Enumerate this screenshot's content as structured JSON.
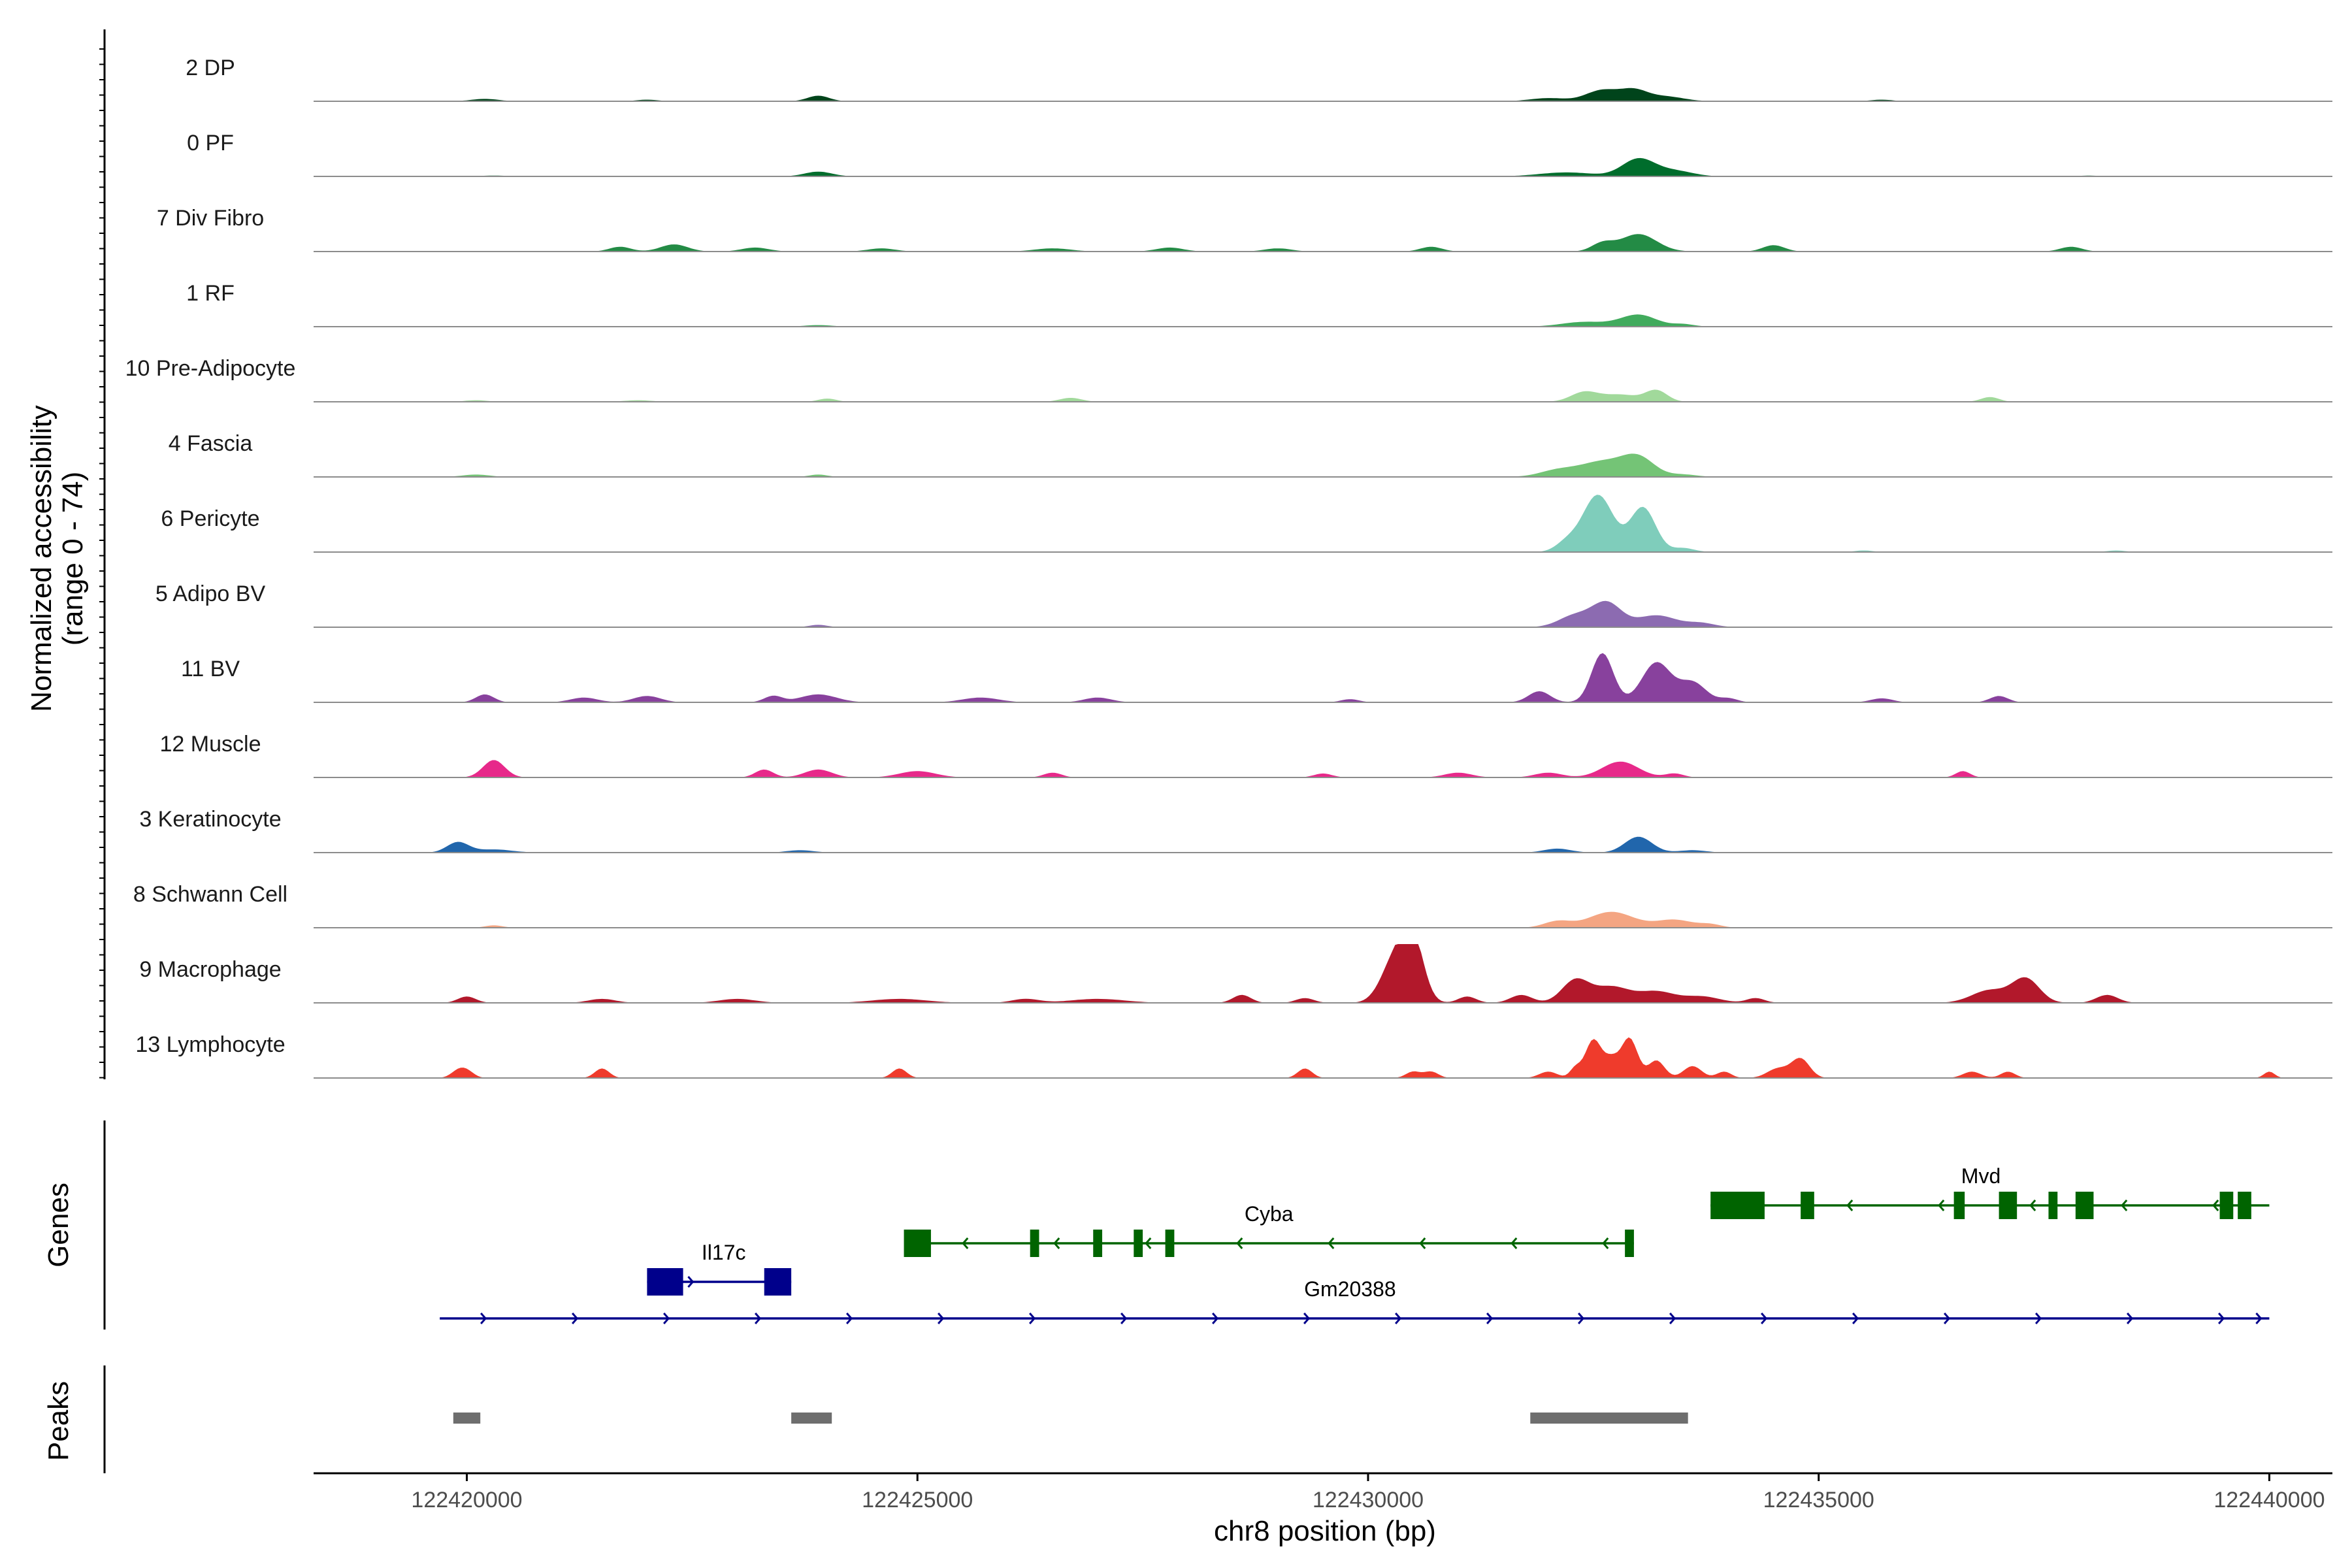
{
  "chart_data": {
    "type": "area",
    "title": "",
    "ylabel_line1": "Normalized accessibility",
    "ylabel_line2": "(range 0 - 74)",
    "y_range": [
      0,
      74
    ],
    "xlabel": "chr8 position (bp)",
    "x_range": [
      122418300,
      122440700
    ],
    "x_ticks": [
      122420000,
      122425000,
      122430000,
      122435000,
      122440000
    ],
    "x_tick_labels": [
      "122420000",
      "122425000",
      "122430000",
      "122435000",
      "122440000"
    ],
    "panel_genes_label": "Genes",
    "panel_peaks_label": "Peaks",
    "baseline_color": "#8c8c8c",
    "tracks": [
      {
        "name": "2 DP",
        "color": "#00441b",
        "peaks": [
          [
            122420200,
            150,
            3
          ],
          [
            122422000,
            120,
            2
          ],
          [
            122423900,
            120,
            7
          ],
          [
            122432000,
            200,
            4
          ],
          [
            122432600,
            180,
            14
          ],
          [
            122432950,
            150,
            13
          ],
          [
            122433300,
            200,
            6
          ],
          [
            122435700,
            120,
            2
          ]
        ]
      },
      {
        "name": "0 PF",
        "color": "#006d2c",
        "peaks": [
          [
            122420300,
            200,
            1
          ],
          [
            122423900,
            150,
            6
          ],
          [
            122432200,
            300,
            5
          ],
          [
            122433000,
            180,
            22
          ],
          [
            122433400,
            200,
            7
          ],
          [
            122438000,
            120,
            1
          ]
        ]
      },
      {
        "name": "7 Div Fibro",
        "color": "#238b45",
        "peaks": [
          [
            122421700,
            120,
            6
          ],
          [
            122422300,
            150,
            9
          ],
          [
            122423200,
            150,
            5
          ],
          [
            122424600,
            150,
            4
          ],
          [
            122426500,
            200,
            4
          ],
          [
            122427800,
            150,
            5
          ],
          [
            122429000,
            150,
            4
          ],
          [
            122430700,
            120,
            6
          ],
          [
            122432600,
            120,
            10
          ],
          [
            122433000,
            200,
            22
          ],
          [
            122434500,
            120,
            8
          ],
          [
            122437800,
            120,
            6
          ]
        ]
      },
      {
        "name": "1 RF",
        "color": "#41ab5d",
        "peaks": [
          [
            122423900,
            150,
            2
          ],
          [
            122432400,
            250,
            6
          ],
          [
            122433000,
            200,
            15
          ],
          [
            122433500,
            120,
            3
          ]
        ]
      },
      {
        "name": "10 Pre-Adipocyte",
        "color": "#a1d99b",
        "peaks": [
          [
            122420100,
            120,
            2
          ],
          [
            122421900,
            150,
            2
          ],
          [
            122424000,
            100,
            4
          ],
          [
            122426700,
            120,
            5
          ],
          [
            122432400,
            150,
            12
          ],
          [
            122432800,
            200,
            9
          ],
          [
            122433200,
            120,
            14
          ],
          [
            122436900,
            100,
            6
          ]
        ]
      },
      {
        "name": "4 Fascia",
        "color": "#74c476",
        "peaks": [
          [
            122420100,
            150,
            3
          ],
          [
            122423900,
            100,
            3
          ],
          [
            122432100,
            200,
            8
          ],
          [
            122432600,
            250,
            19
          ],
          [
            122433000,
            180,
            23
          ],
          [
            122433500,
            150,
            3
          ]
        ]
      },
      {
        "name": "6 Pericyte",
        "color": "#7fcdbb",
        "peaks": [
          [
            122432200,
            120,
            11
          ],
          [
            122432550,
            170,
            72
          ],
          [
            122433050,
            140,
            56
          ],
          [
            122433500,
            120,
            5
          ],
          [
            122435500,
            100,
            2
          ],
          [
            122438300,
            100,
            2
          ]
        ]
      },
      {
        "name": "5 Adipo BV",
        "color": "#8c6bb1",
        "peaks": [
          [
            122423900,
            100,
            3
          ],
          [
            122432300,
            180,
            15
          ],
          [
            122432650,
            160,
            30
          ],
          [
            122433200,
            220,
            15
          ],
          [
            122433700,
            150,
            5
          ]
        ]
      },
      {
        "name": "11 BV",
        "color": "#88419d",
        "peaks": [
          [
            122420200,
            100,
            10
          ],
          [
            122421300,
            150,
            6
          ],
          [
            122422000,
            150,
            8
          ],
          [
            122423400,
            100,
            8
          ],
          [
            122423900,
            200,
            10
          ],
          [
            122425700,
            200,
            6
          ],
          [
            122427000,
            150,
            6
          ],
          [
            122429800,
            100,
            4
          ],
          [
            122431900,
            120,
            14
          ],
          [
            122432600,
            120,
            62
          ],
          [
            122433200,
            160,
            50
          ],
          [
            122433600,
            150,
            25
          ],
          [
            122434000,
            100,
            5
          ],
          [
            122435700,
            120,
            5
          ],
          [
            122437000,
            100,
            8
          ]
        ]
      },
      {
        "name": "12 Muscle",
        "color": "#e7298a",
        "peaks": [
          [
            122420300,
            120,
            22
          ],
          [
            122423300,
            100,
            10
          ],
          [
            122423900,
            150,
            10
          ],
          [
            122425000,
            200,
            8
          ],
          [
            122426500,
            100,
            6
          ],
          [
            122429500,
            100,
            5
          ],
          [
            122431000,
            150,
            6
          ],
          [
            122432000,
            150,
            6
          ],
          [
            122432800,
            200,
            20
          ],
          [
            122433400,
            100,
            5
          ],
          [
            122436600,
            80,
            8
          ]
        ]
      },
      {
        "name": "3 Keratinocyte",
        "color": "#2166ac",
        "peaks": [
          [
            122419900,
            120,
            13
          ],
          [
            122420300,
            200,
            4
          ],
          [
            122423700,
            150,
            3
          ],
          [
            122432100,
            150,
            5
          ],
          [
            122433000,
            150,
            20
          ],
          [
            122433600,
            150,
            3
          ]
        ]
      },
      {
        "name": "8 Schwann Cell",
        "color": "#f4a582",
        "peaks": [
          [
            122420300,
            100,
            3
          ],
          [
            122432100,
            150,
            8
          ],
          [
            122432700,
            250,
            20
          ],
          [
            122433400,
            200,
            10
          ],
          [
            122433800,
            120,
            4
          ]
        ]
      },
      {
        "name": "9 Macrophage",
        "color": "#b2182b",
        "peaks": [
          [
            122420000,
            100,
            8
          ],
          [
            122421500,
            150,
            5
          ],
          [
            122423000,
            200,
            5
          ],
          [
            122424800,
            300,
            5
          ],
          [
            122426200,
            150,
            5
          ],
          [
            122427000,
            300,
            5
          ],
          [
            122428600,
            100,
            10
          ],
          [
            122429300,
            100,
            6
          ],
          [
            122430300,
            150,
            55
          ],
          [
            122430500,
            120,
            72
          ],
          [
            122431100,
            100,
            8
          ],
          [
            122431700,
            120,
            10
          ],
          [
            122432300,
            150,
            28
          ],
          [
            122432700,
            200,
            20
          ],
          [
            122433200,
            200,
            14
          ],
          [
            122433700,
            200,
            8
          ],
          [
            122434300,
            100,
            6
          ],
          [
            122436900,
            200,
            16
          ],
          [
            122437300,
            150,
            30
          ],
          [
            122438200,
            120,
            10
          ]
        ]
      },
      {
        "name": "13 Lymphocyte",
        "color": "#ef3b2c",
        "peaks": [
          [
            122419900,
            80,
            8
          ],
          [
            122420000,
            80,
            8
          ],
          [
            122421500,
            80,
            12
          ],
          [
            122424800,
            80,
            12
          ],
          [
            122429300,
            80,
            12
          ],
          [
            122430500,
            80,
            8
          ],
          [
            122430700,
            80,
            8
          ],
          [
            122432000,
            100,
            8
          ],
          [
            122432300,
            60,
            12
          ],
          [
            122432500,
            90,
            48
          ],
          [
            122432700,
            80,
            22
          ],
          [
            122432900,
            90,
            50
          ],
          [
            122433200,
            90,
            22
          ],
          [
            122433600,
            100,
            15
          ],
          [
            122433950,
            80,
            8
          ],
          [
            122434550,
            120,
            12
          ],
          [
            122434800,
            100,
            24
          ],
          [
            122436700,
            100,
            8
          ],
          [
            122437100,
            80,
            8
          ],
          [
            122440000,
            60,
            8
          ]
        ]
      }
    ],
    "genes": [
      {
        "name": "Il17c",
        "strand": "+",
        "color": "#00008b",
        "start": 122422000,
        "end": 122423600,
        "exons": [
          [
            122422000,
            122422400
          ],
          [
            122423300,
            122423600
          ]
        ]
      },
      {
        "name": "Cyba",
        "strand": "-",
        "color": "#006400",
        "start": 122425000,
        "end": 122432950,
        "exons": [
          [
            122424850,
            122425150
          ],
          [
            122426250,
            122426350
          ],
          [
            122426950,
            122427050
          ],
          [
            122427400,
            122427500
          ],
          [
            122427750,
            122427850
          ],
          [
            122432850,
            122432950
          ]
        ]
      },
      {
        "name": "Mvd",
        "strand": "-",
        "color": "#006400",
        "start": 122433800,
        "end": 122440000,
        "exons": [
          [
            122433800,
            122434400
          ],
          [
            122434800,
            122434950
          ],
          [
            122436500,
            122436620
          ],
          [
            122437000,
            122437200
          ],
          [
            122437550,
            122437650
          ],
          [
            122437850,
            122438050
          ],
          [
            122439450,
            122439600
          ],
          [
            122439650,
            122439800
          ]
        ]
      },
      {
        "name": "Gm20388",
        "strand": "+",
        "color": "#00008b",
        "start": 122419700,
        "end": 122440000,
        "exons": []
      }
    ],
    "peaks": [
      [
        122419850,
        122420150
      ],
      [
        122423600,
        122424050
      ],
      [
        122431800,
        122433550
      ]
    ],
    "peak_color": "#6e6e6e"
  }
}
